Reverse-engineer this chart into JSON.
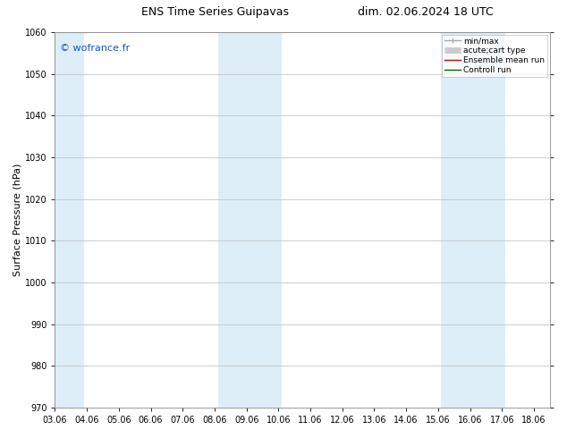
{
  "title_left": "ENS Time Series Guipavas",
  "title_right": "dim. 02.06.2024 18 UTC",
  "ylabel": "Surface Pressure (hPa)",
  "ylim": [
    970,
    1060
  ],
  "yticks": [
    970,
    980,
    990,
    1000,
    1010,
    1020,
    1030,
    1040,
    1050,
    1060
  ],
  "xlim": [
    0,
    15.5
  ],
  "xtick_labels": [
    "03.06",
    "04.06",
    "05.06",
    "06.06",
    "07.06",
    "08.06",
    "09.06",
    "10.06",
    "11.06",
    "12.06",
    "13.06",
    "14.06",
    "15.06",
    "16.06",
    "17.06",
    "18.06"
  ],
  "xtick_positions": [
    0,
    1,
    2,
    3,
    4,
    5,
    6,
    7,
    8,
    9,
    10,
    11,
    12,
    13,
    14,
    15
  ],
  "shaded_regions": [
    {
      "xmin": -0.1,
      "xmax": 0.9
    },
    {
      "xmin": 5.1,
      "xmax": 7.1
    },
    {
      "xmin": 12.1,
      "xmax": 14.1
    }
  ],
  "shade_color": "#ddeef8",
  "background_color": "#ffffff",
  "watermark": "© wofrance.fr",
  "watermark_color": "#1155cc",
  "legend_entries": [
    {
      "label": "min/max",
      "color": "#aaaaaa",
      "lw": 1.0,
      "style": "line_with_caps"
    },
    {
      "label": "acute;cart type",
      "color": "#cccccc",
      "lw": 5,
      "style": "thick"
    },
    {
      "label": "Ensemble mean run",
      "color": "#cc0000",
      "lw": 1.0,
      "style": "line"
    },
    {
      "label": "Controll run",
      "color": "#006600",
      "lw": 1.0,
      "style": "line"
    }
  ],
  "grid_color": "#bbbbbb",
  "tick_fontsize": 7,
  "label_fontsize": 8,
  "title_fontsize": 9,
  "watermark_fontsize": 8,
  "legend_fontsize": 6.5
}
